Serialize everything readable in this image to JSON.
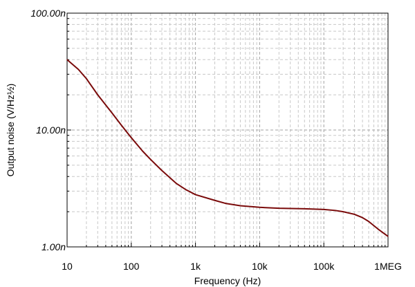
{
  "chart_data": {
    "type": "line",
    "xlabel": "Frequency (Hz)",
    "ylabel": "Output noise (V/Hz½)",
    "x_scale": "log",
    "y_scale": "log",
    "xlim": [
      10,
      1000000
    ],
    "ylim": [
      1e-09,
      1e-07
    ],
    "grid": true,
    "x_ticks": [
      {
        "value": 10,
        "label": "10"
      },
      {
        "value": 100,
        "label": "100"
      },
      {
        "value": 1000,
        "label": "1k"
      },
      {
        "value": 10000,
        "label": "10k"
      },
      {
        "value": 100000,
        "label": "100k"
      },
      {
        "value": 1000000,
        "label": "1MEG"
      }
    ],
    "y_ticks": [
      {
        "value": 1e-09,
        "label": "1.00n"
      },
      {
        "value": 1e-08,
        "label": "10.00n"
      },
      {
        "value": 1e-07,
        "label": "100.00n"
      }
    ],
    "series": [
      {
        "color": "#7a0a0a",
        "points": [
          {
            "x": 10,
            "y": 4e-08
          },
          {
            "x": 15,
            "y": 3.3e-08
          },
          {
            "x": 20,
            "y": 2.75e-08
          },
          {
            "x": 30,
            "y": 2e-08
          },
          {
            "x": 50,
            "y": 1.4e-08
          },
          {
            "x": 70,
            "y": 1.1e-08
          },
          {
            "x": 100,
            "y": 8.6e-09
          },
          {
            "x": 150,
            "y": 6.6e-09
          },
          {
            "x": 200,
            "y": 5.6e-09
          },
          {
            "x": 300,
            "y": 4.5e-09
          },
          {
            "x": 500,
            "y": 3.5e-09
          },
          {
            "x": 700,
            "y": 3.1e-09
          },
          {
            "x": 1000,
            "y": 2.8e-09
          },
          {
            "x": 2000,
            "y": 2.5e-09
          },
          {
            "x": 3000,
            "y": 2.35e-09
          },
          {
            "x": 5000,
            "y": 2.25e-09
          },
          {
            "x": 10000,
            "y": 2.18e-09
          },
          {
            "x": 20000,
            "y": 2.14e-09
          },
          {
            "x": 50000,
            "y": 2.12e-09
          },
          {
            "x": 100000,
            "y": 2.09e-09
          },
          {
            "x": 150000,
            "y": 2.05e-09
          },
          {
            "x": 200000,
            "y": 2e-09
          },
          {
            "x": 300000,
            "y": 1.9e-09
          },
          {
            "x": 400000,
            "y": 1.78e-09
          },
          {
            "x": 500000,
            "y": 1.65e-09
          },
          {
            "x": 700000,
            "y": 1.42e-09
          },
          {
            "x": 1000000,
            "y": 1.23e-09
          }
        ]
      }
    ]
  }
}
